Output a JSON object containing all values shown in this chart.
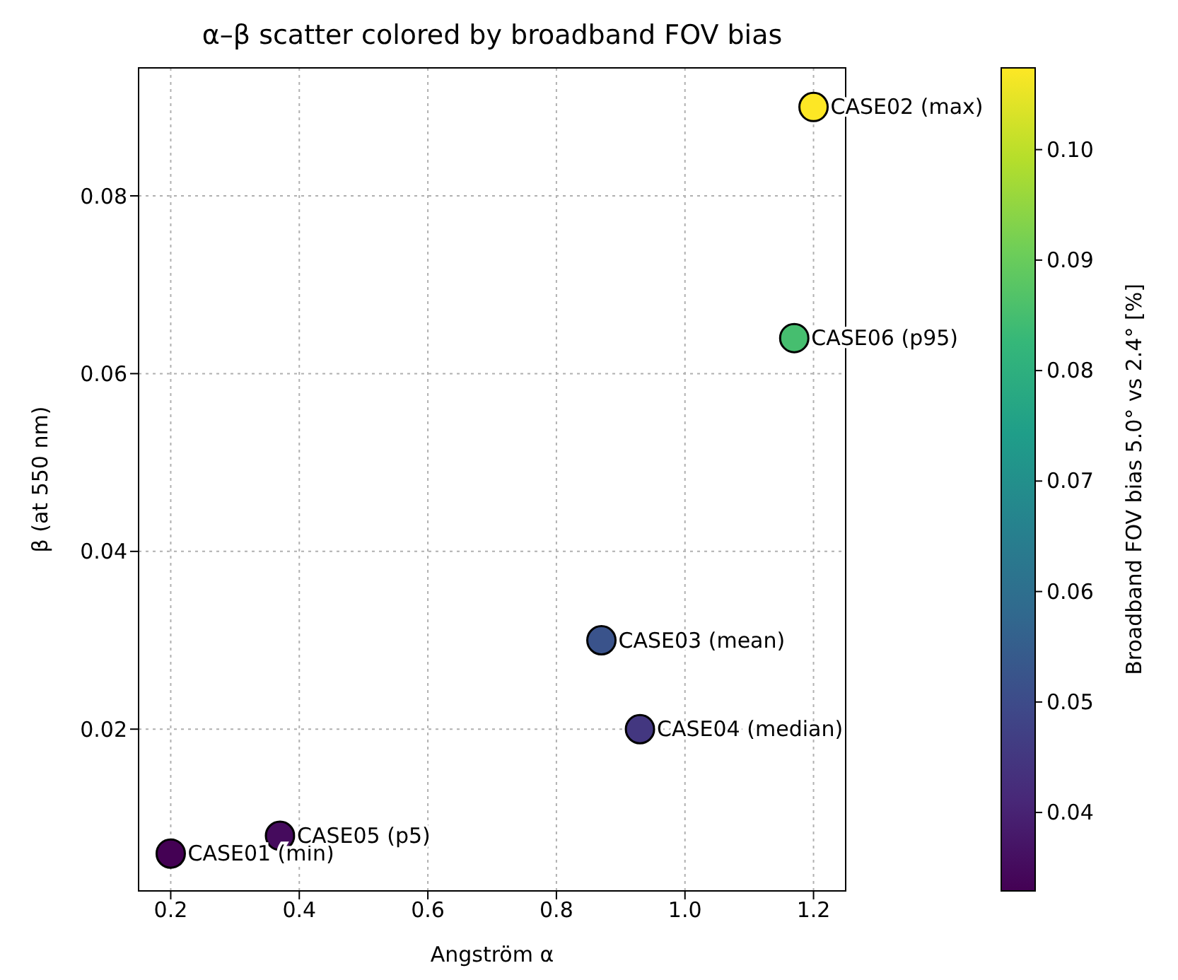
{
  "chart_data": {
    "type": "scatter",
    "title": "α–β scatter colored by broadband FOV bias",
    "xlabel": "Angström α",
    "ylabel": "β (at 550 nm)",
    "clabel": "Broadband FOV bias 5.0° vs 2.4°  [%]",
    "x": [
      0.2,
      0.37,
      0.87,
      0.93,
      1.17,
      1.2
    ],
    "values": [
      0.006,
      0.008,
      0.03,
      0.02,
      0.064,
      0.09
    ],
    "cvalues": [
      0.0329,
      0.035,
      0.052,
      0.045,
      0.085,
      0.1074
    ],
    "clim": [
      0.0329,
      0.1074
    ],
    "cticks": [
      0.04,
      0.05,
      0.06,
      0.07,
      0.08,
      0.09,
      {
        "value": 0.1,
        "label": "0.10"
      }
    ],
    "xlim": [
      0.15,
      1.25
    ],
    "xticks": [
      0.2,
      0.4,
      0.6,
      0.8,
      {
        "value": 1,
        "label": "1.0"
      },
      1.2
    ],
    "ylim": [
      0.0018,
      0.0944
    ],
    "yticks": [
      0.02,
      0.04,
      0.06,
      0.08
    ],
    "grid": true,
    "marker": "circle",
    "annotations": [
      {
        "text": "CASE01 (min)",
        "x": 0.2,
        "y": 0.006
      },
      {
        "text": "CASE05 (p5)",
        "x": 0.37,
        "y": 0.008
      },
      {
        "text": "CASE03 (mean)",
        "x": 0.87,
        "y": 0.03
      },
      {
        "text": "CASE04 (median)",
        "x": 0.93,
        "y": 0.02
      },
      {
        "text": "CASE06 (p95)",
        "x": 1.17,
        "y": 0.064
      },
      {
        "text": "CASE02 (max)",
        "x": 1.2,
        "y": 0.09
      }
    ]
  }
}
